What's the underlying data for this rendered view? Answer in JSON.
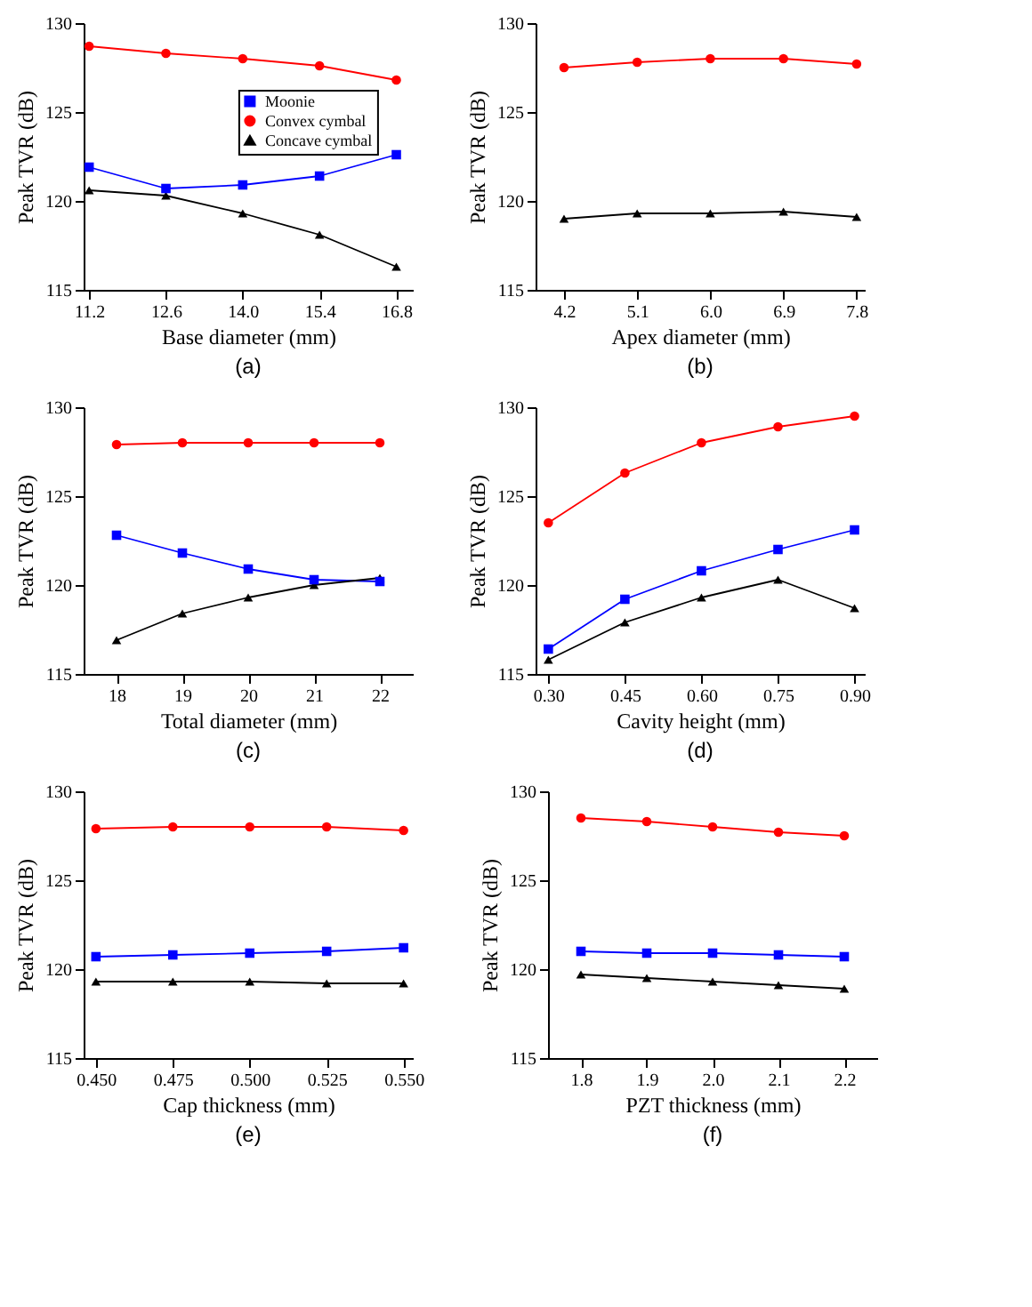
{
  "chart_data": [
    {
      "type": "line",
      "annotations": [
        "(a)"
      ],
      "xlabel": "Base diameter (mm)",
      "ylabel": "Peak TVR (dB)",
      "x": [
        11.2,
        12.6,
        14.0,
        15.4,
        16.8
      ],
      "xlim": [
        11.1,
        17.1
      ],
      "xticks": [
        {
          "value": 11.2,
          "label": "11.2"
        },
        {
          "value": 12.6,
          "label": "12.6"
        },
        {
          "value": 14.0,
          "label": "14.0"
        },
        {
          "value": 15.4,
          "label": "15.4"
        },
        {
          "value": 16.8,
          "label": "16.8"
        }
      ],
      "ylim": [
        115,
        130
      ],
      "yticks": [
        115,
        120,
        125,
        130
      ],
      "grid": false,
      "legend": "right",
      "line_style": "solid",
      "series": [
        {
          "name": "Moonie",
          "color": "#0000ff",
          "marker": "square",
          "values": [
            121.9,
            120.7,
            120.9,
            121.4,
            122.6
          ]
        },
        {
          "name": "Convex cymbal",
          "color": "#ff0000",
          "marker": "circle",
          "values": [
            128.7,
            128.3,
            128.0,
            127.6,
            126.8
          ]
        },
        {
          "name": "Concave cymbal",
          "color": "#000000",
          "marker": "triangle",
          "values": [
            120.6,
            120.3,
            119.3,
            118.1,
            116.3
          ]
        }
      ]
    },
    {
      "type": "line",
      "annotations": [
        "(b)"
      ],
      "xlabel": "Apex diameter (mm)",
      "ylabel": "Peak TVR (dB)",
      "x": [
        4.2,
        5.1,
        6.0,
        6.9,
        7.8
      ],
      "xlim": [
        3.85,
        7.9
      ],
      "xticks": [
        4.2,
        5.1,
        {
          "value": 6.0,
          "label": "6.0"
        },
        6.9,
        7.8
      ],
      "ylim": [
        115,
        130
      ],
      "yticks": [
        115,
        120,
        125,
        130
      ],
      "grid": false,
      "legend": "right",
      "line_style": "solid",
      "series": [
        {
          "name": "Convex cymbal",
          "color": "#ff0000",
          "marker": "circle",
          "values": [
            127.5,
            127.8,
            128.0,
            128.0,
            127.7
          ]
        },
        {
          "name": "Concave cymbal",
          "color": "#000000",
          "marker": "triangle",
          "values": [
            119.0,
            119.3,
            119.3,
            119.4,
            119.1
          ]
        }
      ]
    },
    {
      "type": "line",
      "annotations": [
        "(c)"
      ],
      "xlabel": "Total diameter (mm)",
      "ylabel": "Peak TVR (dB)",
      "x": [
        18,
        19,
        20,
        21,
        22
      ],
      "xlim": [
        17.5,
        22.5
      ],
      "xticks": [
        18,
        19,
        20,
        21,
        22
      ],
      "ylim": [
        115,
        130
      ],
      "yticks": [
        115,
        120,
        125,
        130
      ],
      "grid": false,
      "legend": "right",
      "line_style": "solid",
      "series": [
        {
          "name": "Moonie",
          "color": "#0000ff",
          "marker": "square",
          "values": [
            122.8,
            121.8,
            120.9,
            120.3,
            120.2
          ]
        },
        {
          "name": "Convex cymbal",
          "color": "#ff0000",
          "marker": "circle",
          "values": [
            127.9,
            128.0,
            128.0,
            128.0,
            128.0
          ]
        },
        {
          "name": "Concave cymbal",
          "color": "#000000",
          "marker": "triangle",
          "values": [
            116.9,
            118.4,
            119.3,
            120.0,
            120.4
          ]
        }
      ]
    },
    {
      "type": "line",
      "annotations": [
        "(d)"
      ],
      "xlabel": "Cavity height (mm)",
      "ylabel": "Peak TVR (dB)",
      "x": [
        0.3,
        0.45,
        0.6,
        0.75,
        0.9
      ],
      "xlim": [
        0.275,
        0.92
      ],
      "xticks": [
        {
          "value": 0.3,
          "label": "0.30"
        },
        0.45,
        {
          "value": 0.6,
          "label": "0.60"
        },
        0.75,
        {
          "value": 0.9,
          "label": "0.90"
        }
      ],
      "ylim": [
        115,
        130
      ],
      "yticks": [
        115,
        120,
        125,
        130
      ],
      "grid": false,
      "legend": "right",
      "line_style": "solid",
      "series": [
        {
          "name": "Moonie",
          "color": "#0000ff",
          "marker": "square",
          "values": [
            116.4,
            119.2,
            120.8,
            122.0,
            123.1
          ]
        },
        {
          "name": "Convex cymbal",
          "color": "#ff0000",
          "marker": "circle",
          "values": [
            123.5,
            126.3,
            128.0,
            128.9,
            129.5
          ]
        },
        {
          "name": "Concave cymbal",
          "color": "#000000",
          "marker": "triangle",
          "values": [
            115.8,
            117.9,
            119.3,
            120.3,
            118.7
          ]
        }
      ]
    },
    {
      "type": "line",
      "annotations": [
        "(e)"
      ],
      "xlabel": "Cap thickness (mm)",
      "ylabel": "Peak TVR (dB)",
      "x": [
        0.45,
        0.475,
        0.5,
        0.525,
        0.55
      ],
      "xlim": [
        0.446,
        0.553
      ],
      "xticks": [
        {
          "value": 0.45,
          "label": "0.450"
        },
        0.475,
        {
          "value": 0.5,
          "label": "0.500"
        },
        0.525,
        {
          "value": 0.55,
          "label": "0.550"
        }
      ],
      "ylim": [
        115,
        130
      ],
      "yticks": [
        115,
        120,
        125,
        130
      ],
      "grid": false,
      "legend": "right",
      "line_style": "solid",
      "series": [
        {
          "name": "Moonie",
          "color": "#0000ff",
          "marker": "square",
          "values": [
            120.7,
            120.8,
            120.9,
            121.0,
            121.2
          ]
        },
        {
          "name": "Convex cymbal",
          "color": "#ff0000",
          "marker": "circle",
          "values": [
            127.9,
            128.0,
            128.0,
            128.0,
            127.8
          ]
        },
        {
          "name": "Concave cymbal",
          "color": "#000000",
          "marker": "triangle",
          "values": [
            119.3,
            119.3,
            119.3,
            119.2,
            119.2
          ]
        }
      ]
    },
    {
      "type": "line",
      "annotations": [
        "(f)"
      ],
      "xlabel": "PZT thickness (mm)",
      "ylabel": "Peak TVR (dB)",
      "x": [
        1.8,
        1.9,
        2.0,
        2.1,
        2.2
      ],
      "xlim": [
        1.75,
        2.25
      ],
      "xticks": [
        1.8,
        1.9,
        {
          "value": 2.0,
          "label": "2.0"
        },
        2.1,
        2.2
      ],
      "ylim": [
        115,
        130
      ],
      "yticks": [
        115,
        120,
        125,
        130
      ],
      "grid": false,
      "legend": "right",
      "line_style": "solid",
      "series": [
        {
          "name": "Moonie",
          "color": "#0000ff",
          "marker": "square",
          "values": [
            121.0,
            120.9,
            120.9,
            120.8,
            120.7
          ]
        },
        {
          "name": "Convex cymbal",
          "color": "#ff0000",
          "marker": "circle",
          "values": [
            128.5,
            128.3,
            128.0,
            127.7,
            127.5
          ]
        },
        {
          "name": "Concave cymbal",
          "color": "#000000",
          "marker": "triangle",
          "values": [
            119.7,
            119.5,
            119.3,
            119.1,
            118.9
          ]
        }
      ]
    }
  ]
}
